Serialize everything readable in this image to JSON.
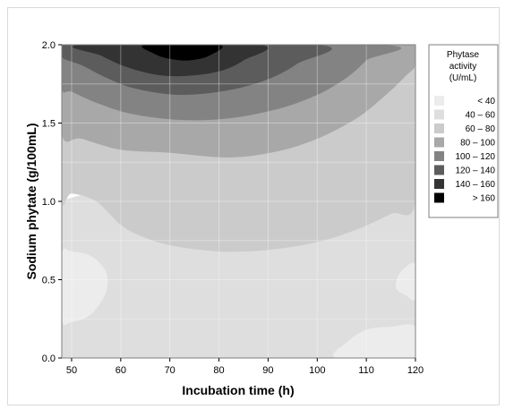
{
  "chart_data": {
    "type": "contour",
    "xlabel": "Incubation time (h)",
    "ylabel": "Sodium phytate (g/100mL)",
    "xlim": [
      48,
      120
    ],
    "ylim": [
      0,
      2.0
    ],
    "x_ticks": [
      "50",
      "60",
      "70",
      "80",
      "90",
      "100",
      "110",
      "120"
    ],
    "y_ticks": [
      "0.0",
      "0.5",
      "1.0",
      "1.5",
      "2.0"
    ],
    "grid": true,
    "legend_position": "right",
    "legend": {
      "title_lines": [
        "Phytase",
        "activity",
        "(U/mL)"
      ],
      "levels": [
        {
          "label": "<   40",
          "color": "#ececec"
        },
        {
          "label": "40  –   60",
          "color": "#dedede"
        },
        {
          "label": "60  –   80",
          "color": "#cbcbcb"
        },
        {
          "label": "80  –  100",
          "color": "#a8a8a8"
        },
        {
          "label": "100  –  120",
          "color": "#838383"
        },
        {
          "label": "120  –  140",
          "color": "#5c5c5c"
        },
        {
          "label": "140  –  160",
          "color": "#333333"
        },
        {
          "label": ">  160",
          "color": "#000000"
        }
      ]
    },
    "regions": [
      {
        "level": 1,
        "points": [
          [
            48,
            0
          ],
          [
            120,
            0
          ],
          [
            120,
            1.0
          ],
          [
            48,
            1.0
          ]
        ]
      },
      {
        "level": 0,
        "points": [
          [
            48,
            0.25
          ],
          [
            50,
            0.23
          ],
          [
            54,
            0.28
          ],
          [
            57,
            0.42
          ],
          [
            57,
            0.55
          ],
          [
            54,
            0.65
          ],
          [
            50,
            0.68
          ],
          [
            48,
            0.66
          ]
        ]
      },
      {
        "level": 0,
        "points": [
          [
            104,
            0
          ],
          [
            106,
            0.1
          ],
          [
            110,
            0.18
          ],
          [
            115,
            0.2
          ],
          [
            120,
            0.2
          ],
          [
            120,
            0
          ]
        ]
      },
      {
        "level": 0,
        "points": [
          [
            120,
            0.6
          ],
          [
            117,
            0.55
          ],
          [
            116,
            0.45
          ],
          [
            118,
            0.4
          ],
          [
            120,
            0.38
          ]
        ]
      },
      {
        "level": 2,
        "points": [
          [
            48,
            1.03
          ],
          [
            50,
            1.05
          ],
          [
            55,
            1.0
          ],
          [
            60,
            0.85
          ],
          [
            64,
            0.78
          ],
          [
            70,
            0.72
          ],
          [
            80,
            0.68
          ],
          [
            90,
            0.69
          ],
          [
            100,
            0.74
          ],
          [
            108,
            0.82
          ],
          [
            115,
            0.92
          ],
          [
            120,
            1.0
          ],
          [
            120,
            1.87
          ],
          [
            48,
            1.87
          ]
        ]
      },
      {
        "level": 3,
        "points": [
          [
            48,
            1.43
          ],
          [
            52,
            1.4
          ],
          [
            60,
            1.33
          ],
          [
            70,
            1.31
          ],
          [
            82,
            1.28
          ],
          [
            92,
            1.32
          ],
          [
            100,
            1.4
          ],
          [
            108,
            1.53
          ],
          [
            114,
            1.68
          ],
          [
            118,
            1.8
          ],
          [
            120,
            1.87
          ],
          [
            120,
            2.0
          ],
          [
            48,
            2.0
          ]
        ]
      },
      {
        "level": 4,
        "points": [
          [
            48,
            1.72
          ],
          [
            50,
            1.7
          ],
          [
            55,
            1.63
          ],
          [
            62,
            1.56
          ],
          [
            72,
            1.52
          ],
          [
            82,
            1.53
          ],
          [
            92,
            1.59
          ],
          [
            100,
            1.68
          ],
          [
            106,
            1.79
          ],
          [
            110,
            1.9
          ],
          [
            113,
            2.0
          ],
          [
            48,
            2.0
          ]
        ]
      },
      {
        "level": 5,
        "points": [
          [
            48,
            1.92
          ],
          [
            52,
            1.87
          ],
          [
            57,
            1.79
          ],
          [
            63,
            1.72
          ],
          [
            72,
            1.68
          ],
          [
            82,
            1.71
          ],
          [
            90,
            1.78
          ],
          [
            96,
            1.88
          ],
          [
            100,
            2.0
          ],
          [
            48,
            2.0
          ]
        ]
      },
      {
        "level": 6,
        "points": [
          [
            52,
            2.0
          ],
          [
            56,
            1.93
          ],
          [
            61,
            1.86
          ],
          [
            67,
            1.81
          ],
          [
            73,
            1.8
          ],
          [
            80,
            1.83
          ],
          [
            85,
            1.9
          ],
          [
            88,
            2.0
          ]
        ]
      },
      {
        "level": 7,
        "points": [
          [
            65,
            2.0
          ],
          [
            67,
            1.94
          ],
          [
            70,
            1.91
          ],
          [
            74,
            1.9
          ],
          [
            78,
            1.93
          ],
          [
            80,
            2.0
          ]
        ]
      }
    ]
  }
}
